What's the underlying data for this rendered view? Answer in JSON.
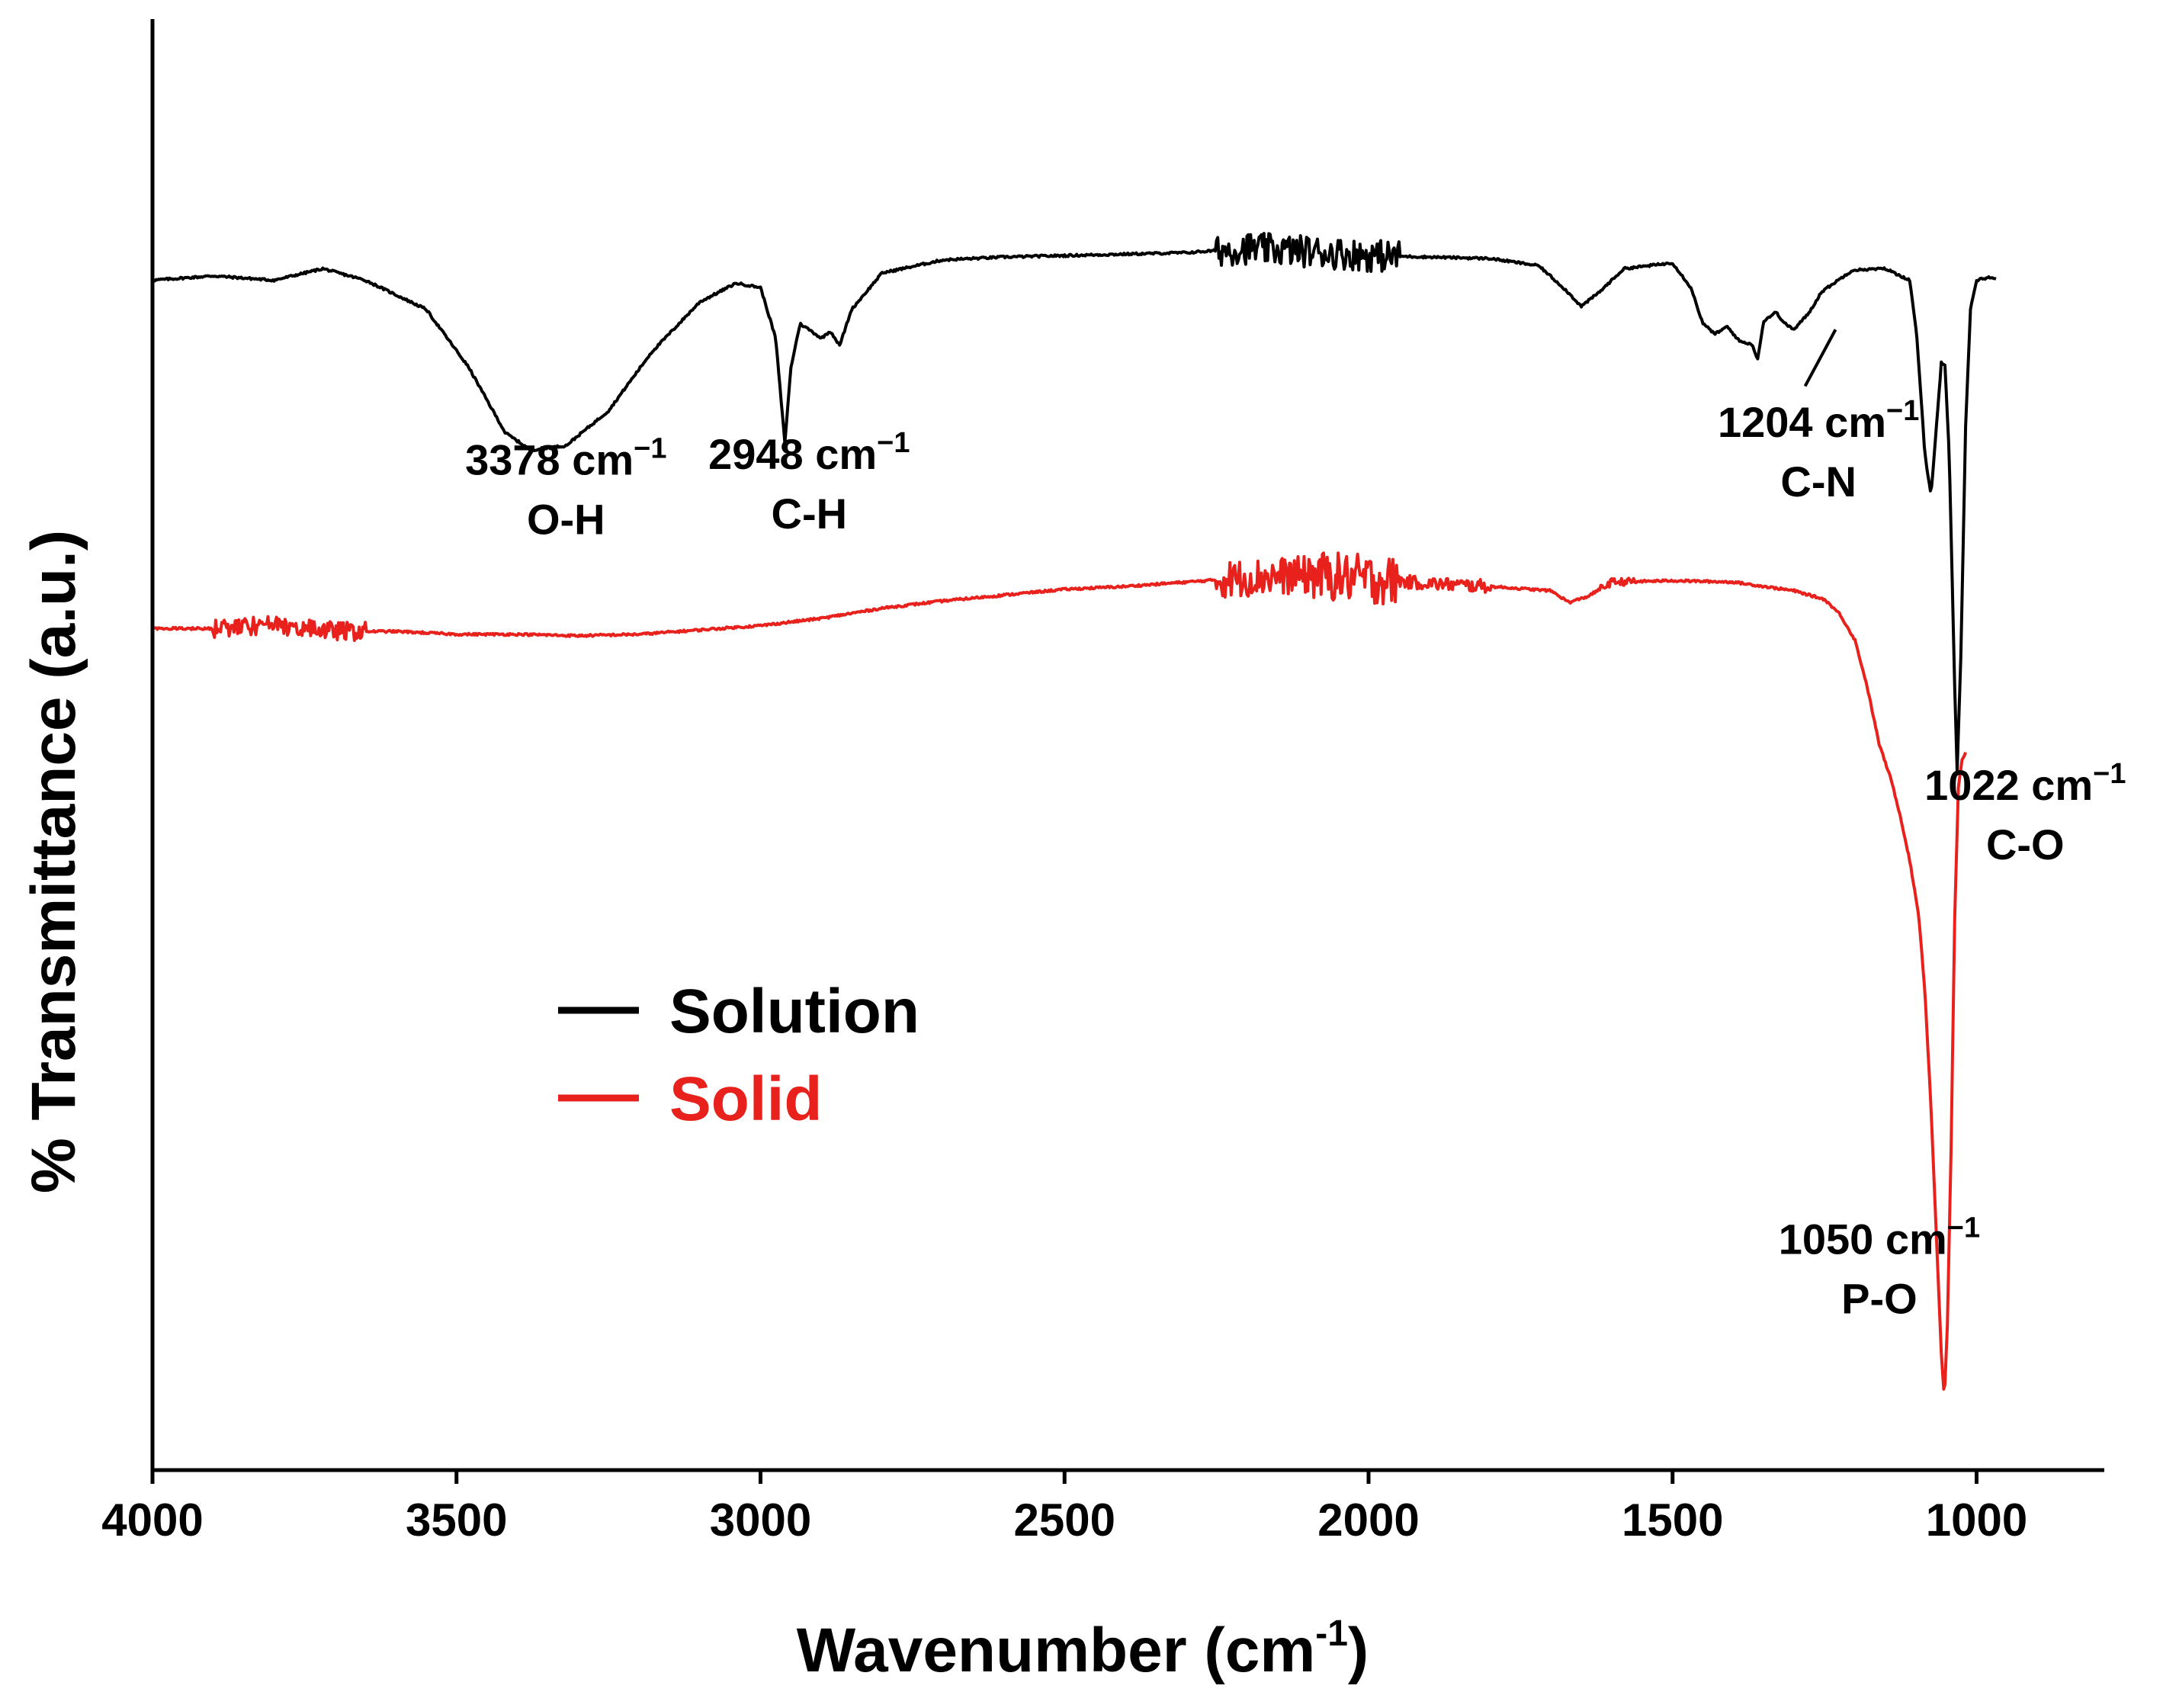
{
  "chart_data": {
    "type": "line",
    "title": "",
    "xlabel": "Wavenumber (cm",
    "xlabel_sup": "-1",
    "xlabel_end": ")",
    "ylabel": "% Transmittance (a.u.)",
    "xlim": [
      4000,
      800
    ],
    "x_reversed": true,
    "ylim": [
      0,
      100
    ],
    "y_tick_labels_shown": false,
    "x_ticks": [
      {
        "value": 4000,
        "label": "4000"
      },
      {
        "value": 3500,
        "label": "3500"
      },
      {
        "value": 3000,
        "label": "3000"
      },
      {
        "value": 2500,
        "label": "2500"
      },
      {
        "value": 2000,
        "label": "2000"
      },
      {
        "value": 1500,
        "label": "1500"
      },
      {
        "value": 1000,
        "label": "1000"
      }
    ],
    "legend": {
      "placement": "center-left",
      "entries": [
        {
          "name": "Solution",
          "color": "#000000"
        },
        {
          "name": "Solid",
          "color": "#e8211c"
        }
      ]
    },
    "series": [
      {
        "name": "Solution",
        "color": "#000000",
        "noise": [
          [
            2250,
            1950,
            2.2
          ]
        ],
        "points": [
          [
            4000,
            82
          ],
          [
            3900,
            82.3
          ],
          [
            3800,
            82
          ],
          [
            3720,
            82.8
          ],
          [
            3650,
            82
          ],
          [
            3550,
            80
          ],
          [
            3480,
            76
          ],
          [
            3420,
            71.5
          ],
          [
            3378,
            70.3
          ],
          [
            3320,
            70.6
          ],
          [
            3250,
            73
          ],
          [
            3180,
            77
          ],
          [
            3100,
            80.5
          ],
          [
            3040,
            81.8
          ],
          [
            3000,
            81.5
          ],
          [
            2975,
            78
          ],
          [
            2960,
            70.8
          ],
          [
            2950,
            76
          ],
          [
            2935,
            79
          ],
          [
            2920,
            78.6
          ],
          [
            2900,
            78
          ],
          [
            2885,
            78.5
          ],
          [
            2870,
            77.5
          ],
          [
            2850,
            80
          ],
          [
            2800,
            82.5
          ],
          [
            2700,
            83.4
          ],
          [
            2600,
            83.6
          ],
          [
            2500,
            83.7
          ],
          [
            2400,
            83.8
          ],
          [
            2300,
            83.9
          ],
          [
            2200,
            84.2
          ],
          [
            2100,
            84
          ],
          [
            2000,
            83.7
          ],
          [
            1900,
            83.6
          ],
          [
            1800,
            83.5
          ],
          [
            1720,
            83
          ],
          [
            1680,
            81.5
          ],
          [
            1650,
            80.2
          ],
          [
            1620,
            81.2
          ],
          [
            1580,
            82.8
          ],
          [
            1500,
            83.2
          ],
          [
            1470,
            81.5
          ],
          [
            1450,
            79
          ],
          [
            1430,
            78.3
          ],
          [
            1410,
            78.8
          ],
          [
            1390,
            77.8
          ],
          [
            1370,
            77.6
          ],
          [
            1360,
            76.6
          ],
          [
            1350,
            79.2
          ],
          [
            1330,
            79.8
          ],
          [
            1315,
            79
          ],
          [
            1300,
            78.6
          ],
          [
            1275,
            79.8
          ],
          [
            1255,
            81.2
          ],
          [
            1204,
            82.7
          ],
          [
            1150,
            82.8
          ],
          [
            1110,
            82
          ],
          [
            1098,
            78
          ],
          [
            1085,
            70
          ],
          [
            1075,
            67.2
          ],
          [
            1066,
            72
          ],
          [
            1058,
            76.3
          ],
          [
            1052,
            76.1
          ],
          [
            1045,
            70
          ],
          [
            1036,
            54
          ],
          [
            1032,
            48.1
          ],
          [
            1026,
            56
          ],
          [
            1018,
            72
          ],
          [
            1010,
            80
          ],
          [
            1000,
            82
          ],
          [
            980,
            82.2
          ],
          [
            968,
            82.1
          ]
        ]
      },
      {
        "name": "Solid",
        "color": "#e8211c",
        "noise": [
          [
            3900,
            3650,
            1.3
          ],
          [
            2250,
            2100,
            2.6
          ],
          [
            2100,
            1950,
            3.4
          ],
          [
            1950,
            1800,
            0.9
          ],
          [
            1620,
            1560,
            0.5
          ]
        ],
        "points": [
          [
            4000,
            58
          ],
          [
            3900,
            58
          ],
          [
            3800,
            58.2
          ],
          [
            3700,
            57.8
          ],
          [
            3600,
            57.8
          ],
          [
            3500,
            57.6
          ],
          [
            3400,
            57.6
          ],
          [
            3300,
            57.5
          ],
          [
            3200,
            57.6
          ],
          [
            3100,
            57.9
          ],
          [
            3000,
            58.2
          ],
          [
            2900,
            58.7
          ],
          [
            2800,
            59.4
          ],
          [
            2700,
            59.9
          ],
          [
            2600,
            60.3
          ],
          [
            2500,
            60.7
          ],
          [
            2400,
            60.9
          ],
          [
            2300,
            61.2
          ],
          [
            2200,
            61.5
          ],
          [
            2100,
            61.7
          ],
          [
            2000,
            61.4
          ],
          [
            1900,
            61.1
          ],
          [
            1800,
            60.9
          ],
          [
            1700,
            60.6
          ],
          [
            1670,
            59.8
          ],
          [
            1640,
            60.2
          ],
          [
            1600,
            61.2
          ],
          [
            1500,
            61.3
          ],
          [
            1400,
            61.2
          ],
          [
            1300,
            60.6
          ],
          [
            1250,
            60
          ],
          [
            1225,
            59
          ],
          [
            1200,
            57.2
          ],
          [
            1180,
            54
          ],
          [
            1160,
            50
          ],
          [
            1140,
            47.5
          ],
          [
            1125,
            45
          ],
          [
            1110,
            42
          ],
          [
            1095,
            38.2
          ],
          [
            1085,
            33
          ],
          [
            1075,
            25
          ],
          [
            1066,
            16
          ],
          [
            1058,
            8
          ],
          [
            1053,
            4.9
          ],
          [
            1048,
            10
          ],
          [
            1042,
            22
          ],
          [
            1036,
            38
          ],
          [
            1030,
            47
          ],
          [
            1024,
            48.9
          ],
          [
            1018,
            49.5
          ]
        ]
      }
    ],
    "annotations": [
      {
        "id": "oh",
        "line1": "3378 cm",
        "line1_sup": "−1",
        "line2": "O-H",
        "x": 3320,
        "y": 68.6
      },
      {
        "id": "ch",
        "line1": "2948 cm",
        "line1_sup": "−1",
        "line2": "C-H",
        "x": 2920,
        "y": 69
      },
      {
        "id": "cn",
        "line1": "1204 cm",
        "line1_sup": "−1",
        "line2": "C-N",
        "x": 1260,
        "y": 71.2
      },
      {
        "id": "co",
        "line1": "1022 cm",
        "line1_sup": "−1",
        "line2": "C-O",
        "x": 920,
        "y": 46.2
      },
      {
        "id": "po",
        "line1": "1050 cm",
        "line1_sup": "−1",
        "line2": "P-O",
        "x": 1160,
        "y": 14.9
      }
    ],
    "leader_line": {
      "from": [
        1282,
        74.7
      ],
      "to": [
        1232,
        78.6
      ]
    }
  }
}
